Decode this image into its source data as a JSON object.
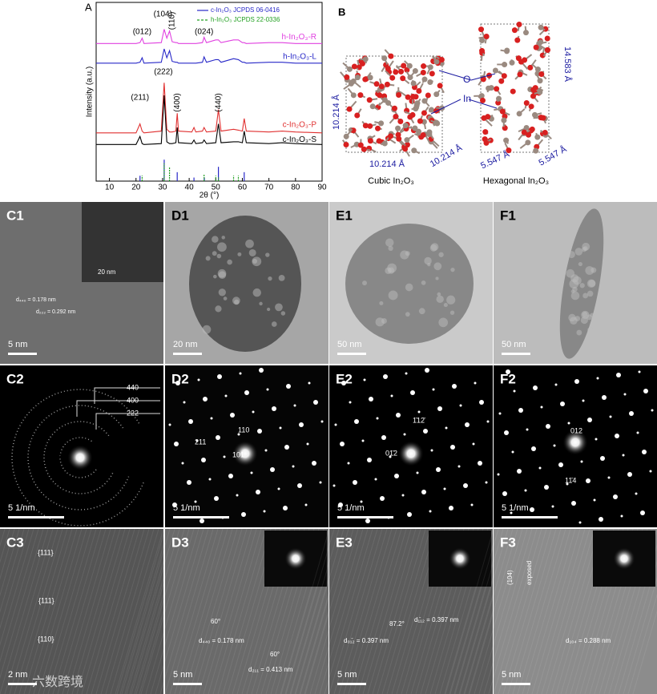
{
  "chart_data": {
    "type": "line",
    "panel_label": "A",
    "xlabel": "2θ (°)",
    "ylabel": "Intensity (a.u.)",
    "xlim": [
      5,
      90
    ],
    "xticks": [
      10,
      20,
      30,
      40,
      50,
      60,
      70,
      80,
      90
    ],
    "ylim": [
      0,
      100
    ],
    "x": [
      5,
      20,
      21.5,
      22.3,
      23,
      29.5,
      30.6,
      31.6,
      32.6,
      33.6,
      35,
      35.5,
      36,
      41,
      41.8,
      42.5,
      45,
      45.6,
      46.5,
      50,
      51,
      52,
      56.7,
      58.5,
      60,
      60.7,
      61.5,
      70,
      75,
      80,
      90
    ],
    "series": [
      {
        "name": "h-In₂O₃-R",
        "color": "#e040e0",
        "values": [
          77,
          77,
          77.5,
          80,
          77,
          77.5,
          85,
          80,
          84,
          78,
          77.5,
          77.5,
          77,
          77,
          77,
          77,
          77.5,
          80.5,
          77.5,
          79,
          79,
          77.5,
          79,
          79,
          77.5,
          77.5,
          77,
          77.5,
          77.5,
          77,
          77
        ]
      },
      {
        "name": "h-In₂O₃-L",
        "color": "#2828c8",
        "values": [
          66,
          66,
          66.5,
          69,
          66,
          66.5,
          74,
          69,
          73,
          67,
          66.5,
          66.5,
          66,
          66,
          66,
          66,
          66.5,
          69.5,
          66.5,
          68,
          68,
          66.5,
          68.5,
          68,
          66.5,
          66.5,
          66,
          66.5,
          66.5,
          66,
          66
        ]
      },
      {
        "name": "c-In₂O₃-P",
        "color": "#e03030",
        "values": [
          27,
          27,
          32,
          28,
          27,
          28,
          55,
          29,
          27.5,
          27.5,
          28,
          38,
          28,
          27.5,
          30,
          27.5,
          28,
          30,
          27.5,
          28,
          40,
          28,
          29,
          28.5,
          28,
          35,
          28,
          27.5,
          28,
          27.5,
          27
        ]
      },
      {
        "name": "c-In₂O₃-S",
        "color": "#000000",
        "values": [
          20.5,
          20.5,
          25,
          21,
          20.5,
          21,
          48,
          22,
          21,
          21,
          21.5,
          30,
          21.5,
          21,
          23,
          21,
          21.5,
          23,
          21,
          21.5,
          32,
          21.5,
          22,
          22,
          21.5,
          28,
          21.5,
          21,
          21.5,
          21,
          20.5
        ]
      }
    ],
    "references": [
      {
        "name": "c-In₂O₃ JCPDS 06-0416",
        "color": "#2828c8",
        "x": [
          21.5,
          30.6,
          35.5,
          41.8,
          45.7,
          51,
          60.7
        ],
        "values": [
          3,
          12,
          5,
          2,
          2,
          8,
          5
        ]
      },
      {
        "name": "h-In₂O₃ JCPDS 22-0336",
        "color": "#22a022",
        "x": [
          22.3,
          30.6,
          32.6,
          45.6,
          50,
          51,
          56.7,
          58.5
        ],
        "values": [
          3,
          10,
          8,
          4,
          3,
          2,
          3,
          3
        ]
      }
    ],
    "annotations": [
      "(012)",
      "(104)",
      "(110)",
      "(024)",
      "(222)",
      "(211)",
      "(400)",
      "(440)"
    ]
  },
  "structure": {
    "panel_label": "B",
    "o_label": "O",
    "in_label": "In",
    "cubic_dims": [
      "10.214 Å",
      "10.214 Å",
      "10.214 Å"
    ],
    "hex_dims": [
      "14.583 Å",
      "5.547 Å",
      "5.547 Å"
    ],
    "cubic_name": "Cubic In₂O₃",
    "hex_name": "Hexagonal In₂O₃"
  },
  "panels": [
    {
      "label": "C1",
      "scale_bar": "5 nm",
      "annotations": [
        "d₄₄₀ = 0.178 nm",
        "d₂₂₂ = 0.292 nm",
        "20 nm"
      ]
    },
    {
      "label": "D1",
      "scale_bar": "20 nm",
      "annotations": []
    },
    {
      "label": "E1",
      "scale_bar": "50 nm",
      "annotations": []
    },
    {
      "label": "F1",
      "scale_bar": "50 nm",
      "annotations": []
    },
    {
      "label": "C2",
      "scale_bar": "5 1/nm",
      "annotations": [
        "440",
        "400",
        "222"
      ]
    },
    {
      "label": "D2",
      "scale_bar": "5 1/nm",
      "annotations": [
        "110",
        "211",
        "101"
      ]
    },
    {
      "label": "E2",
      "scale_bar": "5 1/nm",
      "annotations": [
        "1̄12̄",
        "01̄2"
      ]
    },
    {
      "label": "F2",
      "scale_bar": "5 1/nm",
      "annotations": [
        "012",
        "11̄4"
      ]
    },
    {
      "label": "C3",
      "scale_bar": "2 nm",
      "annotations": [
        "{111}",
        "{111}",
        "{110}"
      ]
    },
    {
      "label": "D3",
      "scale_bar": "5 nm",
      "annotations": [
        "60°",
        "d₄₄₀ = 0.178 nm",
        "60°",
        "d₂₁₁ = 0.413 nm"
      ]
    },
    {
      "label": "E3",
      "scale_bar": "5 nm",
      "annotations": [
        "87.2°",
        "d₁̄₁₂ = 0.397 nm",
        "d₀₁̄₂ = 0.397 nm"
      ]
    },
    {
      "label": "F3",
      "scale_bar": "5 nm",
      "annotations": [
        "(104)",
        "exposed",
        "d₁₀₄ = 0.288 nm"
      ]
    }
  ],
  "watermark": "六数跨境"
}
